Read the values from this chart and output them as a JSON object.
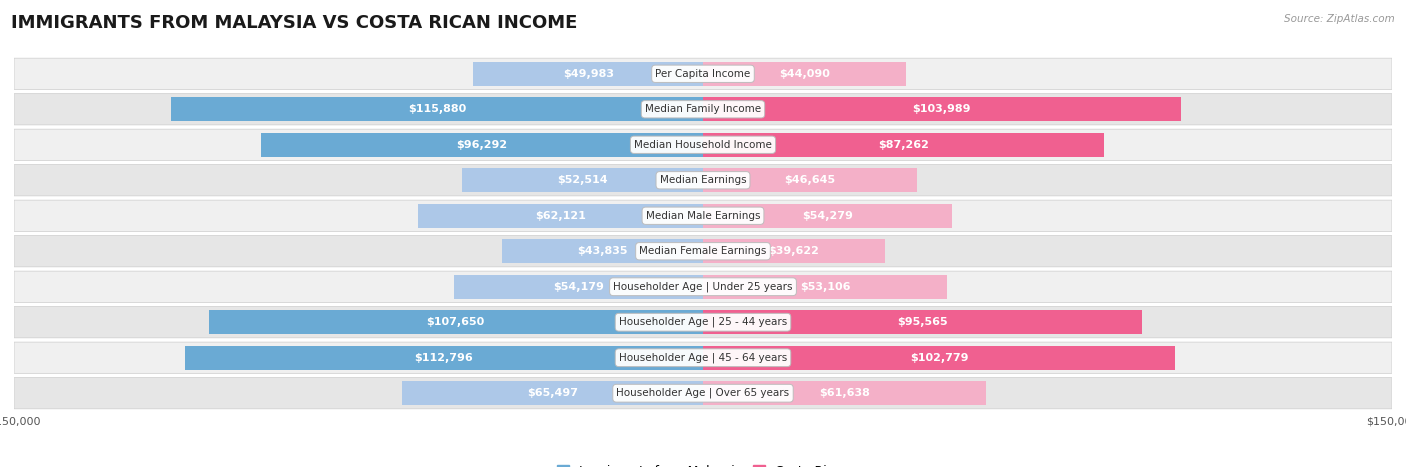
{
  "title": "IMMIGRANTS FROM MALAYSIA VS COSTA RICAN INCOME",
  "source": "Source: ZipAtlas.com",
  "categories": [
    "Per Capita Income",
    "Median Family Income",
    "Median Household Income",
    "Median Earnings",
    "Median Male Earnings",
    "Median Female Earnings",
    "Householder Age | Under 25 years",
    "Householder Age | 25 - 44 years",
    "Householder Age | 45 - 64 years",
    "Householder Age | Over 65 years"
  ],
  "malaysia_values": [
    49983,
    115880,
    96292,
    52514,
    62121,
    43835,
    54179,
    107650,
    112796,
    65497
  ],
  "costarican_values": [
    44090,
    103989,
    87262,
    46645,
    54279,
    39622,
    53106,
    95565,
    102779,
    61638
  ],
  "malaysia_labels": [
    "$49,983",
    "$115,880",
    "$96,292",
    "$52,514",
    "$62,121",
    "$43,835",
    "$54,179",
    "$107,650",
    "$112,796",
    "$65,497"
  ],
  "costarican_labels": [
    "$44,090",
    "$103,989",
    "$87,262",
    "$46,645",
    "$54,279",
    "$39,622",
    "$53,106",
    "$95,565",
    "$102,779",
    "$61,638"
  ],
  "malaysia_color_light": "#adc8e8",
  "malaysia_color_dark": "#6aaad4",
  "costarican_color_light": "#f4b0c8",
  "costarican_color_dark": "#f06090",
  "text_inside_color": "#ffffff",
  "text_outside_color": "#555555",
  "max_value": 150000,
  "inside_threshold": 27000,
  "bg_color": "#ffffff",
  "row_colors": [
    "#f0f0f0",
    "#e6e6e6"
  ],
  "title_fontsize": 13,
  "label_fontsize": 8.0,
  "cat_fontsize": 7.5,
  "axis_label_fontsize": 8,
  "legend_fontsize": 9
}
